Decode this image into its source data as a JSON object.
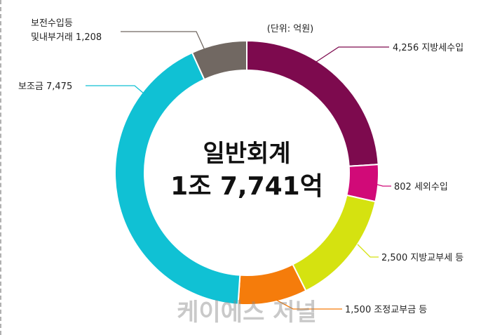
{
  "unit_note": "(단위: 억원)",
  "center": {
    "line1": "일반회계",
    "line2": "1조 7,741억"
  },
  "watermark": "케이에스 저널",
  "chart_data": {
    "type": "pie",
    "variant": "donut",
    "start_angle_deg": 0,
    "direction": "clockwise",
    "slices": [
      {
        "label": "4,256 지방세수입",
        "value": 4256,
        "color": "#7d0a4e"
      },
      {
        "label": "802 세외수입",
        "value": 802,
        "color": "#d10a78"
      },
      {
        "label": "2,500 지방교부세 등",
        "value": 2500,
        "color": "#d5e210"
      },
      {
        "label": "1,500 조정교부금 등",
        "value": 1500,
        "color": "#f57c0b"
      },
      {
        "label": "보조금 7,475",
        "value": 7475,
        "color": "#10c1d4"
      },
      {
        "label": [
          "보전수입등",
          "및내부거래 1,208"
        ],
        "value": 1208,
        "color": "#716862"
      }
    ]
  }
}
